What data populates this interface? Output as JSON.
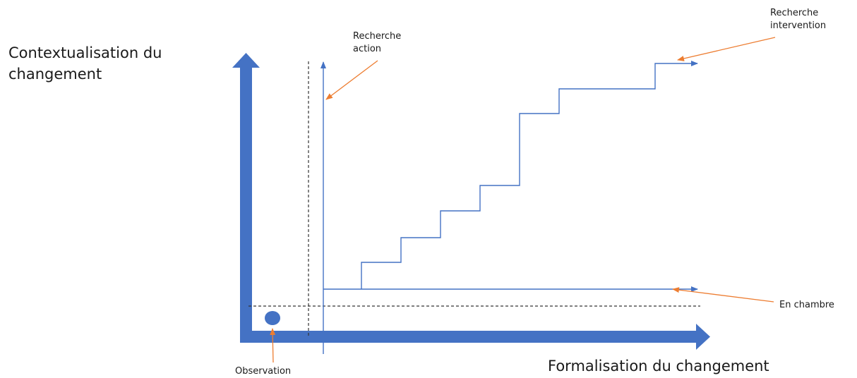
{
  "axes": {
    "y_label": [
      "Contextualisation du",
      "changement"
    ],
    "x_label": "Formalisation du changement"
  },
  "annotations": {
    "recherche_action": [
      "Recherche",
      "action"
    ],
    "recherche_intervention": [
      "Recherche",
      "intervention"
    ],
    "en_chambre": "En chambre",
    "observation": "Observation"
  },
  "colors": {
    "axis": "#4472C4",
    "line": "#4472C4",
    "callout": "#ED7D31",
    "dashed": "#333333",
    "text": "#1a1a1a"
  }
}
